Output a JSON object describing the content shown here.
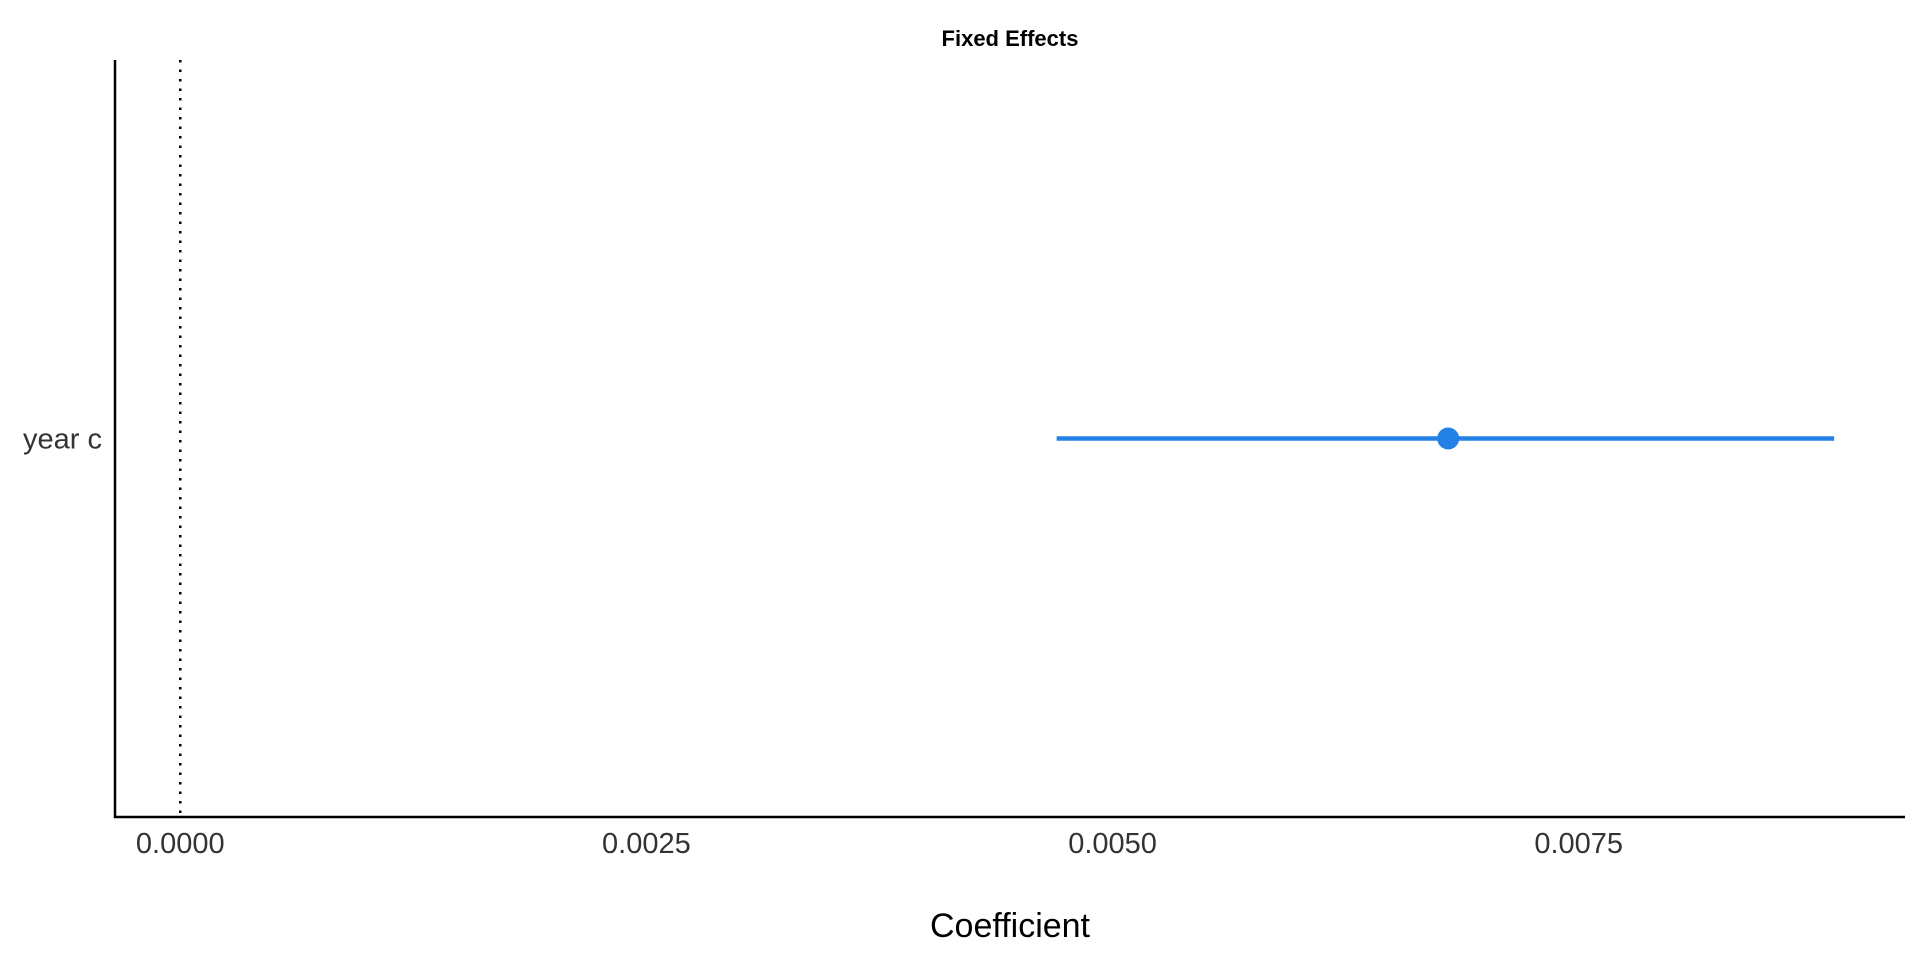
{
  "chart_data": {
    "type": "scatter",
    "subtype": "coefficient-plot",
    "title": "Fixed Effects",
    "xlabel": "Coefficient",
    "ylabel": "",
    "xlim": [
      -0.00035,
      0.00925
    ],
    "x_ticks": [
      0.0,
      0.0025,
      0.005,
      0.0075
    ],
    "x_tick_labels": [
      "0.0000",
      "0.0025",
      "0.0050",
      "0.0075"
    ],
    "reference_line": {
      "x": 0,
      "style": "dotted"
    },
    "categories": [
      "year c"
    ],
    "series": [
      {
        "points": [
          {
            "term": "year c",
            "estimate": 0.0068,
            "conf_low": 0.0047,
            "conf_high": 0.00887
          }
        ]
      }
    ],
    "grid": false,
    "legend": "none"
  },
  "colors": {
    "estimate": "#2481E6",
    "axis": "#000000",
    "tick_text": "#333333"
  }
}
